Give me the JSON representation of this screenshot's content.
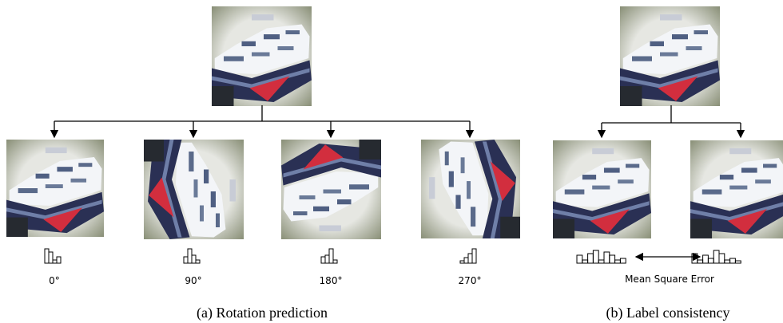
{
  "panels": {
    "a": {
      "labels": [
        "0°",
        "90°",
        "180°",
        "270°"
      ],
      "caption": "(a) Rotation prediction"
    },
    "b": {
      "loss_label": "Mean Square Error",
      "caption": "(b) Label consistency"
    }
  }
}
